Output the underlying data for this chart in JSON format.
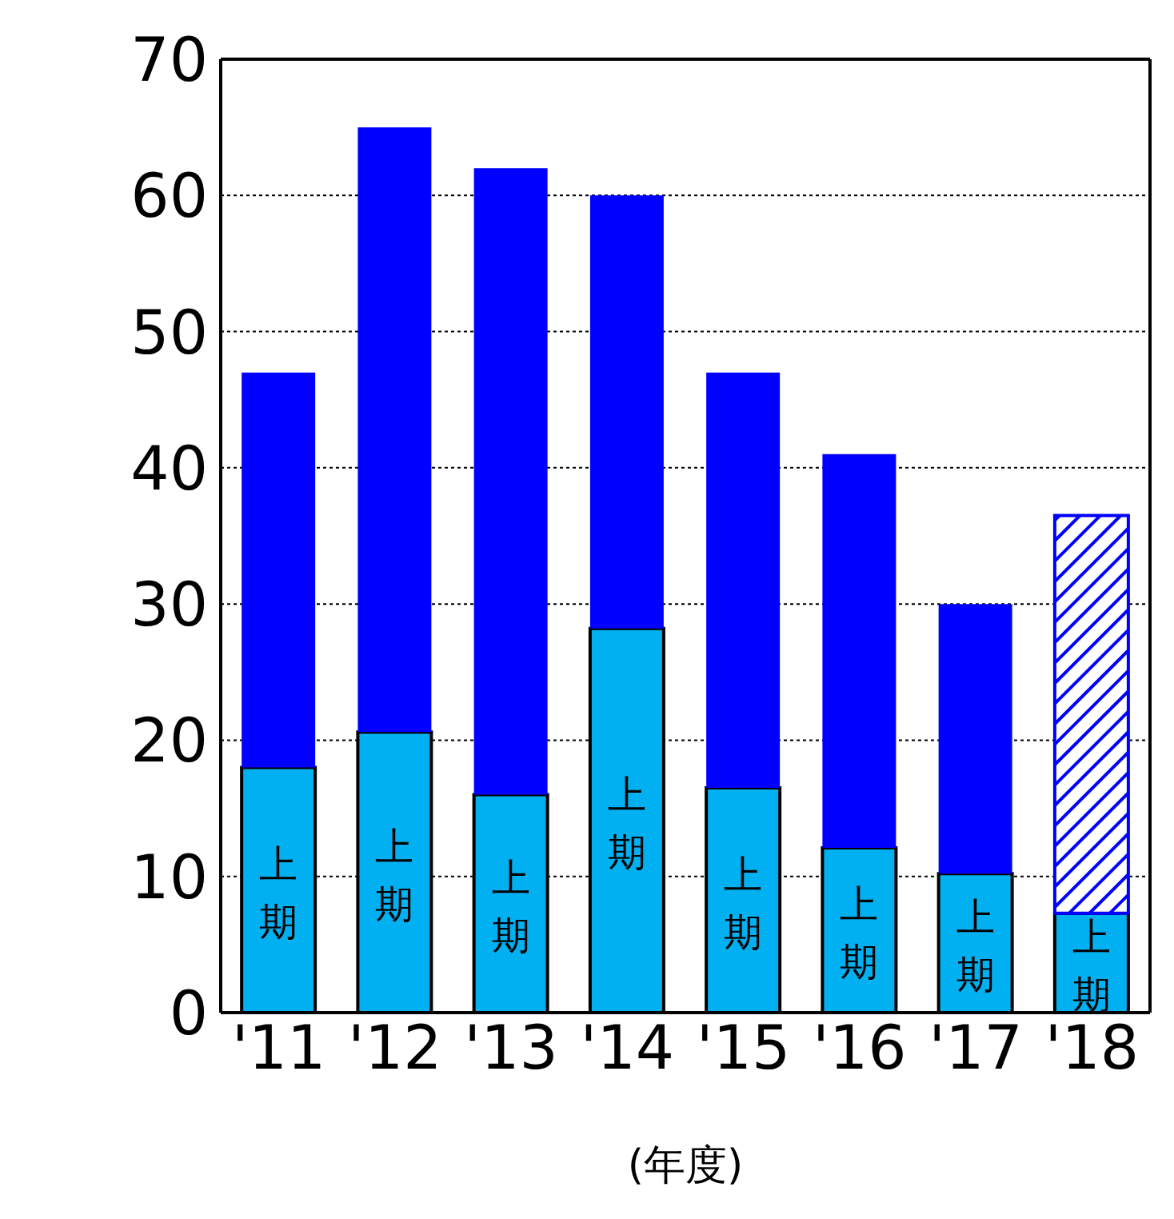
{
  "chart_data": {
    "type": "bar",
    "stacked": true,
    "xlabel": "(年度)",
    "categories": [
      "'11",
      "'12",
      "'13",
      "'14",
      "'15",
      "'16",
      "'17",
      "'18"
    ],
    "series": [
      {
        "name": "上期",
        "color": "#00b0f0",
        "values": [
          18,
          20.6,
          16,
          28.2,
          16.5,
          12.1,
          10.2,
          7.3
        ]
      },
      {
        "color": "#0000ff",
        "values": [
          29,
          44.4,
          46,
          31.8,
          30.5,
          28.9,
          19.8,
          null
        ]
      },
      {
        "color": "#0000ff",
        "values": [
          null,
          null,
          null,
          null,
          null,
          null,
          null,
          29.2
        ]
      }
    ],
    "ylim": [
      0,
      70
    ],
    "yticks": [
      0,
      10,
      20,
      30,
      40,
      50,
      60,
      70
    ],
    "grid": "y"
  }
}
